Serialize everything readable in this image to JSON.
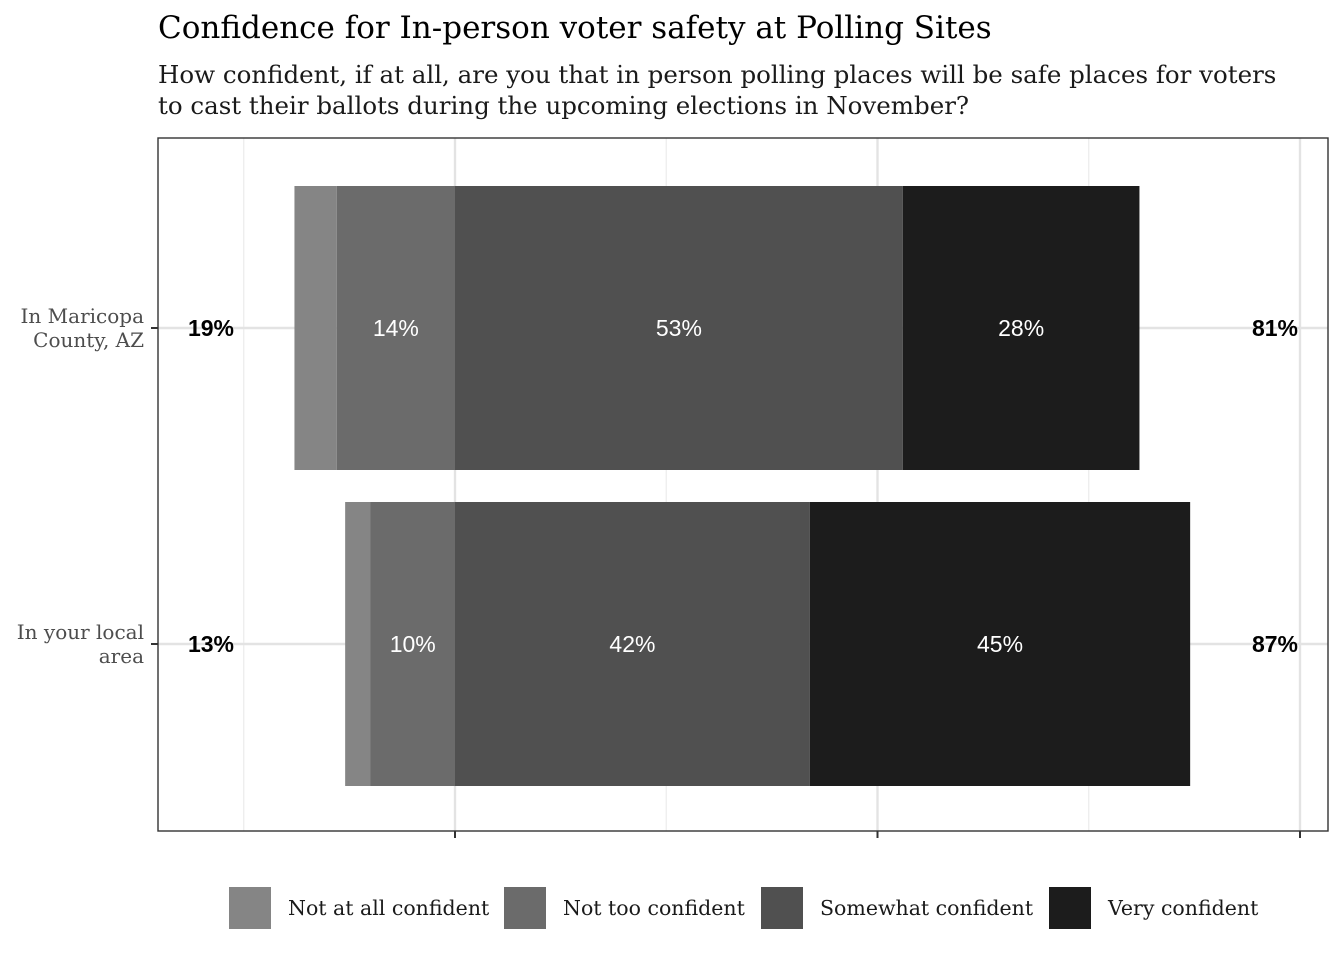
{
  "chart_data": {
    "type": "bar",
    "orientation": "horizontal",
    "stacked": "diverging",
    "title": "Confidence for In-person voter safety at Polling Sites",
    "subtitle": [
      "How confident, if at all, are you that in person polling places will be safe places for voters",
      "to cast their ballots during the upcoming elections in November?"
    ],
    "categories": [
      {
        "label_lines": [
          "In Maricopa",
          "County, AZ"
        ],
        "negative_total": "19%",
        "positive_total": "81%"
      },
      {
        "label_lines": [
          "In your local",
          "area"
        ],
        "negative_total": "13%",
        "positive_total": "87%"
      }
    ],
    "series": [
      {
        "name": "Not at all confident",
        "color": "#858585",
        "side": "negative",
        "values": [
          5,
          3
        ],
        "labels": [
          "",
          ""
        ]
      },
      {
        "name": "Not too confident",
        "color": "#6b6b6b",
        "side": "negative",
        "values": [
          14,
          10
        ],
        "labels": [
          "14%",
          "10%"
        ]
      },
      {
        "name": "Somewhat confident",
        "color": "#505050",
        "side": "positive",
        "values": [
          53,
          42
        ],
        "labels": [
          "53%",
          "42%"
        ]
      },
      {
        "name": "Very confident",
        "color": "#1c1c1c",
        "side": "positive",
        "values": [
          28,
          45
        ],
        "labels": [
          "28%",
          "45%"
        ]
      }
    ],
    "xlim": [
      -35,
      103
    ],
    "grid": true,
    "legend_position": "bottom"
  }
}
